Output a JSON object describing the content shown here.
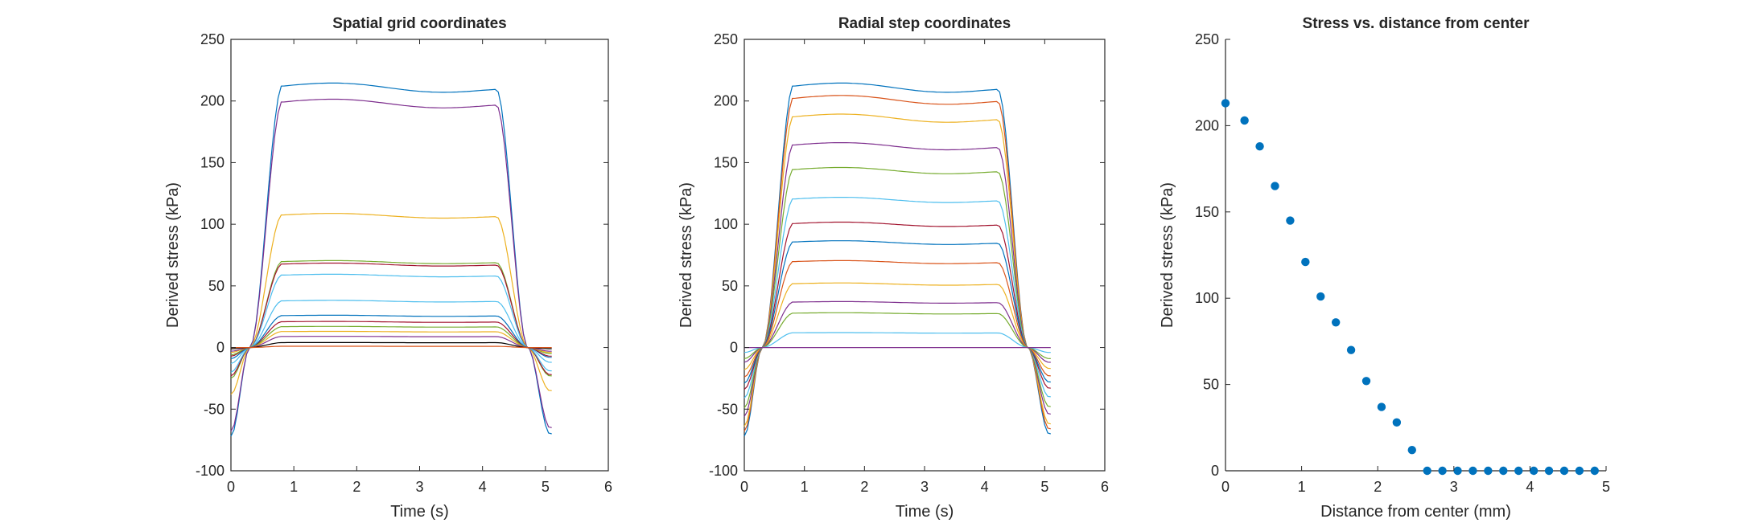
{
  "chart_data": [
    {
      "type": "line",
      "title": "Spatial grid coordinates",
      "xlabel": "Time (s)",
      "ylabel": "Derived stress (kPa)",
      "xlim": [
        0,
        6
      ],
      "ylim": [
        -100,
        250
      ],
      "xticks": [
        "0",
        "1",
        "2",
        "3",
        "4",
        "5",
        "6"
      ],
      "yticks": [
        "-100",
        "-50",
        "0",
        "50",
        "100",
        "150",
        "200",
        "250"
      ],
      "grid": false,
      "legend": "none",
      "series": [
        {
          "color": "#0072BD",
          "plateau": 213,
          "pre": -72,
          "post": -70
        },
        {
          "color": "#7E2F8E",
          "plateau": 200,
          "pre": -68,
          "post": -65
        },
        {
          "color": "#EDB120",
          "plateau": 108,
          "pre": -38,
          "post": -35
        },
        {
          "color": "#77AC30",
          "plateau": 70,
          "pre": -25,
          "post": -23
        },
        {
          "color": "#A2142F",
          "plateau": 68,
          "pre": -23,
          "post": -22
        },
        {
          "color": "#4DBEEE",
          "plateau": 59,
          "pre": -20,
          "post": -19
        },
        {
          "color": "#4DBEEE",
          "plateau": 38,
          "pre": -13,
          "post": -12
        },
        {
          "color": "#0072BD",
          "plateau": 26,
          "pre": -9,
          "post": -8
        },
        {
          "color": "#A2142F",
          "plateau": 21,
          "pre": -7,
          "post": -7
        },
        {
          "color": "#77AC30",
          "plateau": 17,
          "pre": -6,
          "post": -5
        },
        {
          "color": "#EDB120",
          "plateau": 13,
          "pre": -4,
          "post": -4
        },
        {
          "color": "#7E2F8E",
          "plateau": 9,
          "pre": -3,
          "post": -3
        },
        {
          "color": "#000000",
          "plateau": 4,
          "pre": -1,
          "post": -1
        },
        {
          "color": "#D95319",
          "plateau": 1,
          "pre": 0,
          "post": 0
        }
      ]
    },
    {
      "type": "line",
      "title": "Radial step coordinates",
      "xlabel": "Time (s)",
      "ylabel": "Derived stress (kPa)",
      "xlim": [
        0,
        6
      ],
      "ylim": [
        -100,
        250
      ],
      "xticks": [
        "0",
        "1",
        "2",
        "3",
        "4",
        "5",
        "6"
      ],
      "yticks": [
        "-100",
        "-50",
        "0",
        "50",
        "100",
        "150",
        "200",
        "250"
      ],
      "grid": false,
      "legend": "none",
      "series": [
        {
          "color": "#0072BD",
          "plateau": 213,
          "pre": -72,
          "post": -70
        },
        {
          "color": "#D95319",
          "plateau": 203,
          "pre": -68,
          "post": -66
        },
        {
          "color": "#EDB120",
          "plateau": 188,
          "pre": -64,
          "post": -62
        },
        {
          "color": "#7E2F8E",
          "plateau": 165,
          "pre": -56,
          "post": -54
        },
        {
          "color": "#77AC30",
          "plateau": 145,
          "pre": -49,
          "post": -48
        },
        {
          "color": "#4DBEEE",
          "plateau": 121,
          "pre": -41,
          "post": -40
        },
        {
          "color": "#A2142F",
          "plateau": 101,
          "pre": -34,
          "post": -33
        },
        {
          "color": "#0072BD",
          "plateau": 86,
          "pre": -29,
          "post": -28
        },
        {
          "color": "#D95319",
          "plateau": 70,
          "pre": -24,
          "post": -23
        },
        {
          "color": "#EDB120",
          "plateau": 52,
          "pre": -18,
          "post": -17
        },
        {
          "color": "#7E2F8E",
          "plateau": 37,
          "pre": -12,
          "post": -12
        },
        {
          "color": "#77AC30",
          "plateau": 28,
          "pre": -9,
          "post": -9
        },
        {
          "color": "#4DBEEE",
          "plateau": 12,
          "pre": -4,
          "post": -4
        },
        {
          "color": "#7E2F8E",
          "plateau": 0,
          "pre": 0,
          "post": 0
        }
      ]
    },
    {
      "type": "scatter",
      "title": "Stress vs. distance from center",
      "xlabel": "Distance from center (mm)",
      "ylabel": "Derived stress (kPa)",
      "xlim": [
        0,
        5
      ],
      "ylim": [
        0,
        250
      ],
      "xticks": [
        "0",
        "1",
        "2",
        "3",
        "4",
        "5"
      ],
      "yticks": [
        "0",
        "50",
        "100",
        "150",
        "200",
        "250"
      ],
      "grid": false,
      "legend": "none",
      "color": "#0072BD",
      "x": [
        0,
        0.25,
        0.45,
        0.65,
        0.85,
        1.05,
        1.25,
        1.45,
        1.65,
        1.85,
        2.05,
        2.25,
        2.45,
        2.65,
        2.85,
        3.05,
        3.25,
        3.45,
        3.65,
        3.85,
        4.05,
        4.25,
        4.45,
        4.65,
        4.85
      ],
      "y": [
        213,
        203,
        188,
        165,
        145,
        121,
        101,
        86,
        70,
        52,
        37,
        28,
        12,
        0,
        0,
        0,
        0,
        0,
        0,
        0,
        0,
        0,
        0,
        0,
        0
      ]
    }
  ]
}
